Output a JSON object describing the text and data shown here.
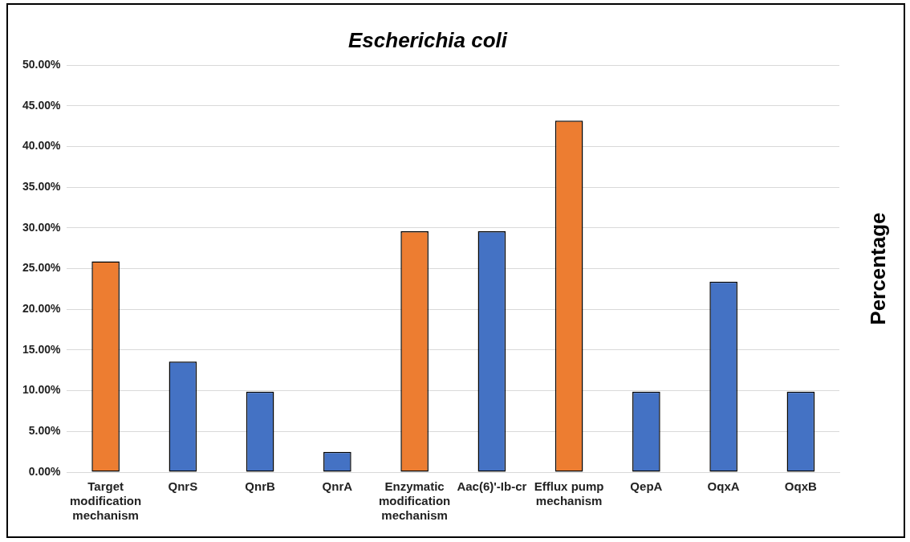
{
  "chart_data": {
    "type": "bar",
    "title": "Escherichia coli",
    "ylabel": "Percentage",
    "categories": [
      "Target modification mechanism",
      "QnrS",
      "QnrB",
      "QnrA",
      "Enzymatic modification mechanism",
      "Aac(6)'-Ib-cr",
      "Efflux pump mechanism",
      "QepA",
      "OqxA",
      "OqxB"
    ],
    "values": [
      25.9,
      13.6,
      9.9,
      2.5,
      29.6,
      29.6,
      43.2,
      9.9,
      23.4,
      9.9
    ],
    "colors": [
      "#ed7d31",
      "#4472c4",
      "#4472c4",
      "#4472c4",
      "#ed7d31",
      "#4472c4",
      "#ed7d31",
      "#4472c4",
      "#4472c4",
      "#4472c4"
    ],
    "ylim": [
      0,
      50
    ],
    "yticks": [
      {
        "value": 0,
        "label": "0.00%"
      },
      {
        "value": 5,
        "label": "5.00%"
      },
      {
        "value": 10,
        "label": "10.00%"
      },
      {
        "value": 15,
        "label": "15.00%"
      },
      {
        "value": 20,
        "label": "20.00%"
      },
      {
        "value": 25,
        "label": "25.00%"
      },
      {
        "value": 30,
        "label": "30.00%"
      },
      {
        "value": 35,
        "label": "35.00%"
      },
      {
        "value": 40,
        "label": "40.00%"
      },
      {
        "value": 45,
        "label": "45.00%"
      },
      {
        "value": 50,
        "label": "50.00%"
      }
    ],
    "grid": "y",
    "legend": false
  }
}
